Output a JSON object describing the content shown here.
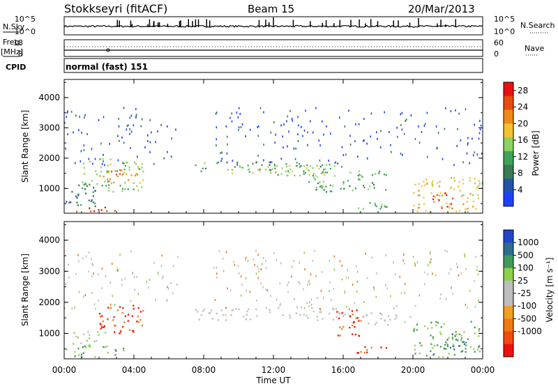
{
  "header": {
    "station": "Stokkseyri (fitACF)",
    "beam": "Beam 15",
    "date": "20/Mar/2013"
  },
  "top_panels": {
    "nsky_label": "N.Sky",
    "nsearch_label": "N.Search",
    "freq_label": "Freq.",
    "freq_unit": "[MHz]",
    "nave_label": "Nave",
    "cpid_label": "CPID",
    "cpid_text": "normal (fast) 151",
    "noise_ticks_left": [
      "10^5",
      "10^0"
    ],
    "noise_ticks_right": [
      "10^5",
      "10^0"
    ],
    "freq_ticks": [
      "18",
      "8"
    ],
    "nave_ticks": [
      "60",
      "0"
    ]
  },
  "colors": {
    "power_scale": [
      "#1f3fff",
      "#2255aa",
      "#3a7a55",
      "#3fa35a",
      "#8bd35f",
      "#f2c230",
      "#f08a18",
      "#e84c10",
      "#ea1010"
    ],
    "velocity_scale": [
      "#2244cc",
      "#2f6e8a",
      "#3f9a5a",
      "#8fd04a",
      "#bdbdbd",
      "#bdbdbd",
      "#f0a020",
      "#f07a10",
      "#f04a10",
      "#ee1010"
    ]
  },
  "chart_data": [
    {
      "type": "heatmap",
      "title": "Power",
      "xlabel": "Time UT",
      "ylabel": "Slant Range [km]",
      "x_ticks": [
        "00:00",
        "04:00",
        "08:00",
        "12:00",
        "16:00",
        "20:00",
        "00:00"
      ],
      "xlim": [
        0,
        24
      ],
      "y_ticks": [
        "1000",
        "2000",
        "3000",
        "4000"
      ],
      "ylim": [
        180,
        4600
      ],
      "colorbar_label": "Power [dB]",
      "colorbar_ticks": [
        "4",
        "8",
        "12",
        "16",
        "20",
        "24",
        "28"
      ],
      "colorbar_range": [
        0,
        30
      ],
      "regions": [
        {
          "t0": 0.0,
          "t1": 3.0,
          "r0": 250,
          "r1": 400,
          "value": 28
        },
        {
          "t0": 0.0,
          "t1": 2.0,
          "r0": 400,
          "r1": 1200,
          "value": 8
        },
        {
          "t0": 1.0,
          "t1": 4.5,
          "r0": 900,
          "r1": 2000,
          "value": 14
        },
        {
          "t0": 2.0,
          "t1": 3.2,
          "r0": 1100,
          "r1": 1700,
          "value": 24
        },
        {
          "t0": 3.2,
          "t1": 4.5,
          "r0": 1200,
          "r1": 1700,
          "value": 20
        },
        {
          "t0": 7.5,
          "t1": 16.0,
          "r0": 1500,
          "r1": 1900,
          "value": 12
        },
        {
          "t0": 9.5,
          "t1": 15.0,
          "r0": 1450,
          "r1": 1800,
          "value": 16
        },
        {
          "t0": 14.0,
          "t1": 18.5,
          "r0": 900,
          "r1": 1600,
          "value": 12
        },
        {
          "t0": 16.5,
          "t1": 18.5,
          "r0": 300,
          "r1": 600,
          "value": 14
        },
        {
          "t0": 20.0,
          "t1": 24.0,
          "r0": 250,
          "r1": 1400,
          "value": 18
        },
        {
          "t0": 21.0,
          "t1": 22.5,
          "r0": 300,
          "r1": 900,
          "value": 26
        }
      ]
    },
    {
      "type": "heatmap",
      "title": "Velocity",
      "xlabel": "Time UT",
      "ylabel": "Slant Range [km]",
      "x_ticks": [
        "00:00",
        "04:00",
        "08:00",
        "12:00",
        "16:00",
        "20:00",
        "00:00"
      ],
      "xlim": [
        0,
        24
      ],
      "y_ticks": [
        "1000",
        "2000",
        "3000",
        "4000"
      ],
      "ylim": [
        180,
        4600
      ],
      "colorbar_label": "Velocity [m s⁻¹]",
      "colorbar_ticks": [
        "1000",
        "500",
        "100",
        "25",
        "-25",
        "-100",
        "-500",
        "-1000"
      ],
      "regions": [
        {
          "t0": 0.0,
          "t1": 3.5,
          "r0": 250,
          "r1": 700,
          "value": 100
        },
        {
          "t0": 0.5,
          "t1": 2.5,
          "r0": 700,
          "r1": 1100,
          "value": 25
        },
        {
          "t0": 2.0,
          "t1": 4.5,
          "r0": 1000,
          "r1": 2000,
          "value": -500
        },
        {
          "t0": 7.5,
          "t1": 16.5,
          "r0": 1450,
          "r1": 1850,
          "value": 0
        },
        {
          "t0": 15.5,
          "t1": 17.0,
          "r0": 900,
          "r1": 1800,
          "value": -500
        },
        {
          "t0": 16.5,
          "t1": 18.5,
          "r0": 350,
          "r1": 600,
          "value": -500
        },
        {
          "t0": 17.0,
          "t1": 20.0,
          "r0": 1300,
          "r1": 1700,
          "value": 0
        },
        {
          "t0": 20.0,
          "t1": 24.0,
          "r0": 250,
          "r1": 1400,
          "value": 100
        },
        {
          "t0": 21.5,
          "t1": 23.0,
          "r0": 500,
          "r1": 1200,
          "value": 500
        }
      ]
    }
  ]
}
